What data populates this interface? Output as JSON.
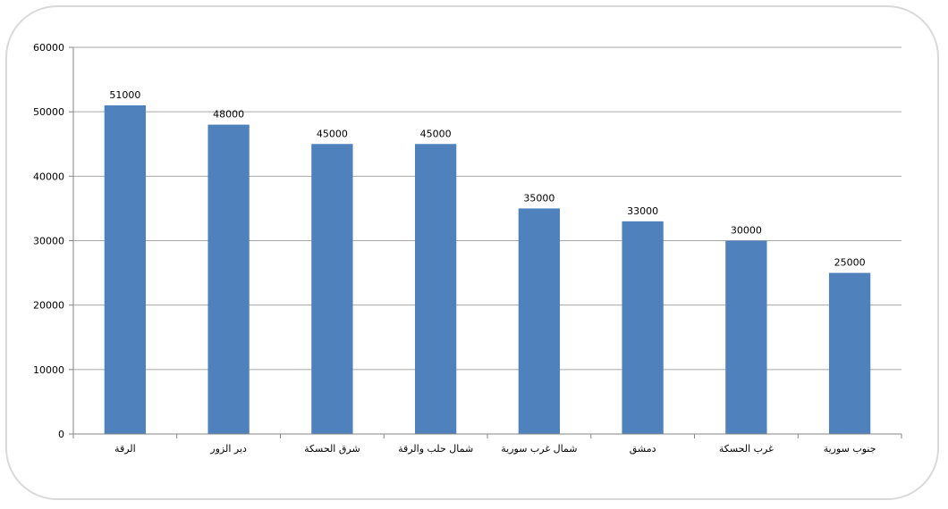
{
  "chart_data": {
    "type": "bar",
    "categories": [
      "الرقة",
      "دير الزور",
      "شرق الحسكة",
      "شمال حلب والرقة",
      "شمال غرب سورية",
      "دمشق",
      "غرب الحسكة",
      "جنوب سورية"
    ],
    "values": [
      51000,
      48000,
      45000,
      45000,
      35000,
      33000,
      30000,
      25000
    ],
    "data_labels": [
      "51000",
      "48000",
      "45000",
      "45000",
      "35000",
      "33000",
      "30000",
      "25000"
    ],
    "yticks": [
      0,
      10000,
      20000,
      30000,
      40000,
      50000,
      60000
    ],
    "ytick_labels": [
      "0",
      "10000",
      "20000",
      "30000",
      "40000",
      "50000",
      "60000"
    ],
    "ylim": [
      0,
      60000
    ],
    "grid": true,
    "legend": "none",
    "bar_color": "#4f81bd",
    "grid_color": "#a6a6a6"
  }
}
